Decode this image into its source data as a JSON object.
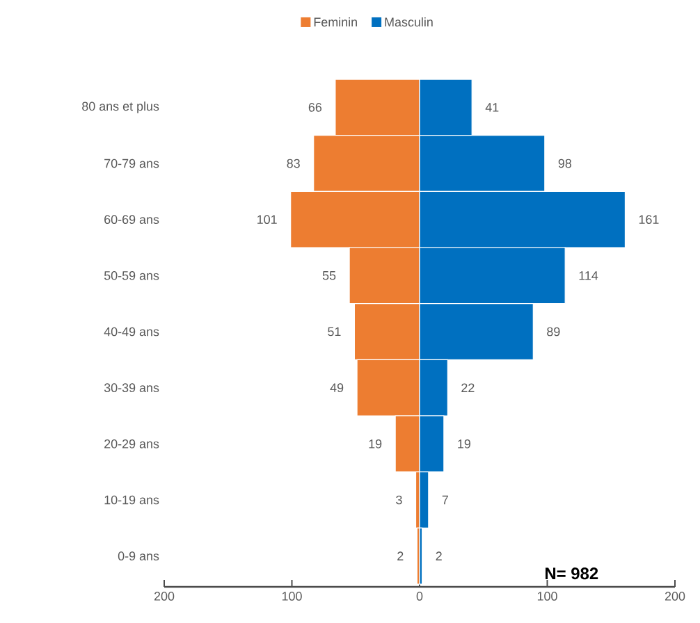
{
  "chart_data": {
    "type": "bar",
    "orientation": "horizontal",
    "categories": [
      "80 ans et plus",
      "70-79 ans",
      "60-69 ans",
      "50-59 ans",
      "40-49 ans",
      "30-39 ans",
      "20-29 ans",
      "10-19 ans",
      "0-9 ans"
    ],
    "series": [
      {
        "name": "Feminin",
        "color": "#ed7d31",
        "values": [
          66,
          83,
          101,
          55,
          51,
          49,
          19,
          3,
          2
        ],
        "base": [
          -66,
          -83,
          -101,
          -55,
          -51,
          -49,
          -19,
          -3,
          -2
        ]
      },
      {
        "name": "Masculin",
        "color": "#0070c0",
        "values": [
          41,
          98,
          161,
          114,
          89,
          22,
          19,
          7,
          2
        ]
      }
    ],
    "data_labels": true,
    "xlim": [
      -200,
      200
    ],
    "xticks": [
      {
        "value": -200,
        "label": "200"
      },
      {
        "value": -100,
        "label": "100"
      },
      0,
      100,
      200
    ],
    "legend": "top",
    "annotations": [
      "N= 982"
    ]
  }
}
